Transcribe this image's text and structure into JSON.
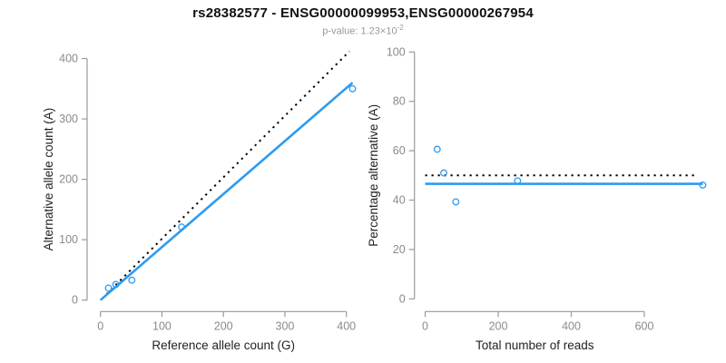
{
  "title": "rs28382577 - ENSG00000099953,ENSG00000267954",
  "subtitle": {
    "text": "p-value: 1.23×10",
    "exponent": "-2"
  },
  "colors": {
    "fit_line_blue": "#2E9BF0",
    "null_line_black": "#000000",
    "axis_gray": "#9a9a9a",
    "tick_label_gray": "#8a8a8a",
    "axis_title_dark": "#222222",
    "title_black": "#111111",
    "subtitle_gray": "#999999"
  },
  "chart_data": [
    {
      "type": "scatter",
      "name": "allele-count-scatter",
      "xlabel": "Reference allele count (G)",
      "ylabel": "Alternative allele count (A)",
      "xlim": [
        0,
        400
      ],
      "ylim": [
        0,
        400
      ],
      "xticks": [
        0,
        100,
        200,
        300,
        400
      ],
      "yticks": [
        0,
        100,
        200,
        300,
        400
      ],
      "grid": false,
      "points": [
        [
          13,
          20
        ],
        [
          25,
          26
        ],
        [
          51,
          33
        ],
        [
          132,
          121
        ],
        [
          410,
          350
        ]
      ],
      "lines": [
        {
          "name": "expected-under-null-line",
          "style": "dotted",
          "color": "#000000",
          "from": [
            10,
            10
          ],
          "to": [
            405,
            412
          ]
        },
        {
          "name": "fitted-line",
          "style": "solid",
          "color": "#2E9BF0",
          "from": [
            0,
            0
          ],
          "to": [
            410,
            360
          ]
        }
      ]
    },
    {
      "type": "scatter",
      "name": "percentage-vs-reads-scatter",
      "xlabel": "Total number of reads",
      "ylabel": "Percentage alternative (A)",
      "xlim": [
        0,
        600
      ],
      "ylim": [
        0,
        100
      ],
      "xticks": [
        0,
        200,
        400,
        600
      ],
      "yticks": [
        0,
        20,
        40,
        60,
        80,
        100
      ],
      "grid": false,
      "points": [
        [
          33,
          60.6
        ],
        [
          51,
          51.0
        ],
        [
          84,
          39.3
        ],
        [
          253,
          47.8
        ],
        [
          760,
          46.1
        ]
      ],
      "lines": [
        {
          "name": "null-50-percent-line",
          "style": "dotted",
          "color": "#000000",
          "from": [
            0,
            50
          ],
          "to": [
            745,
            50
          ]
        },
        {
          "name": "fitted-percentage-line",
          "style": "solid",
          "color": "#2E9BF0",
          "from": [
            0,
            46.6
          ],
          "to": [
            760,
            46.6
          ]
        }
      ]
    }
  ]
}
